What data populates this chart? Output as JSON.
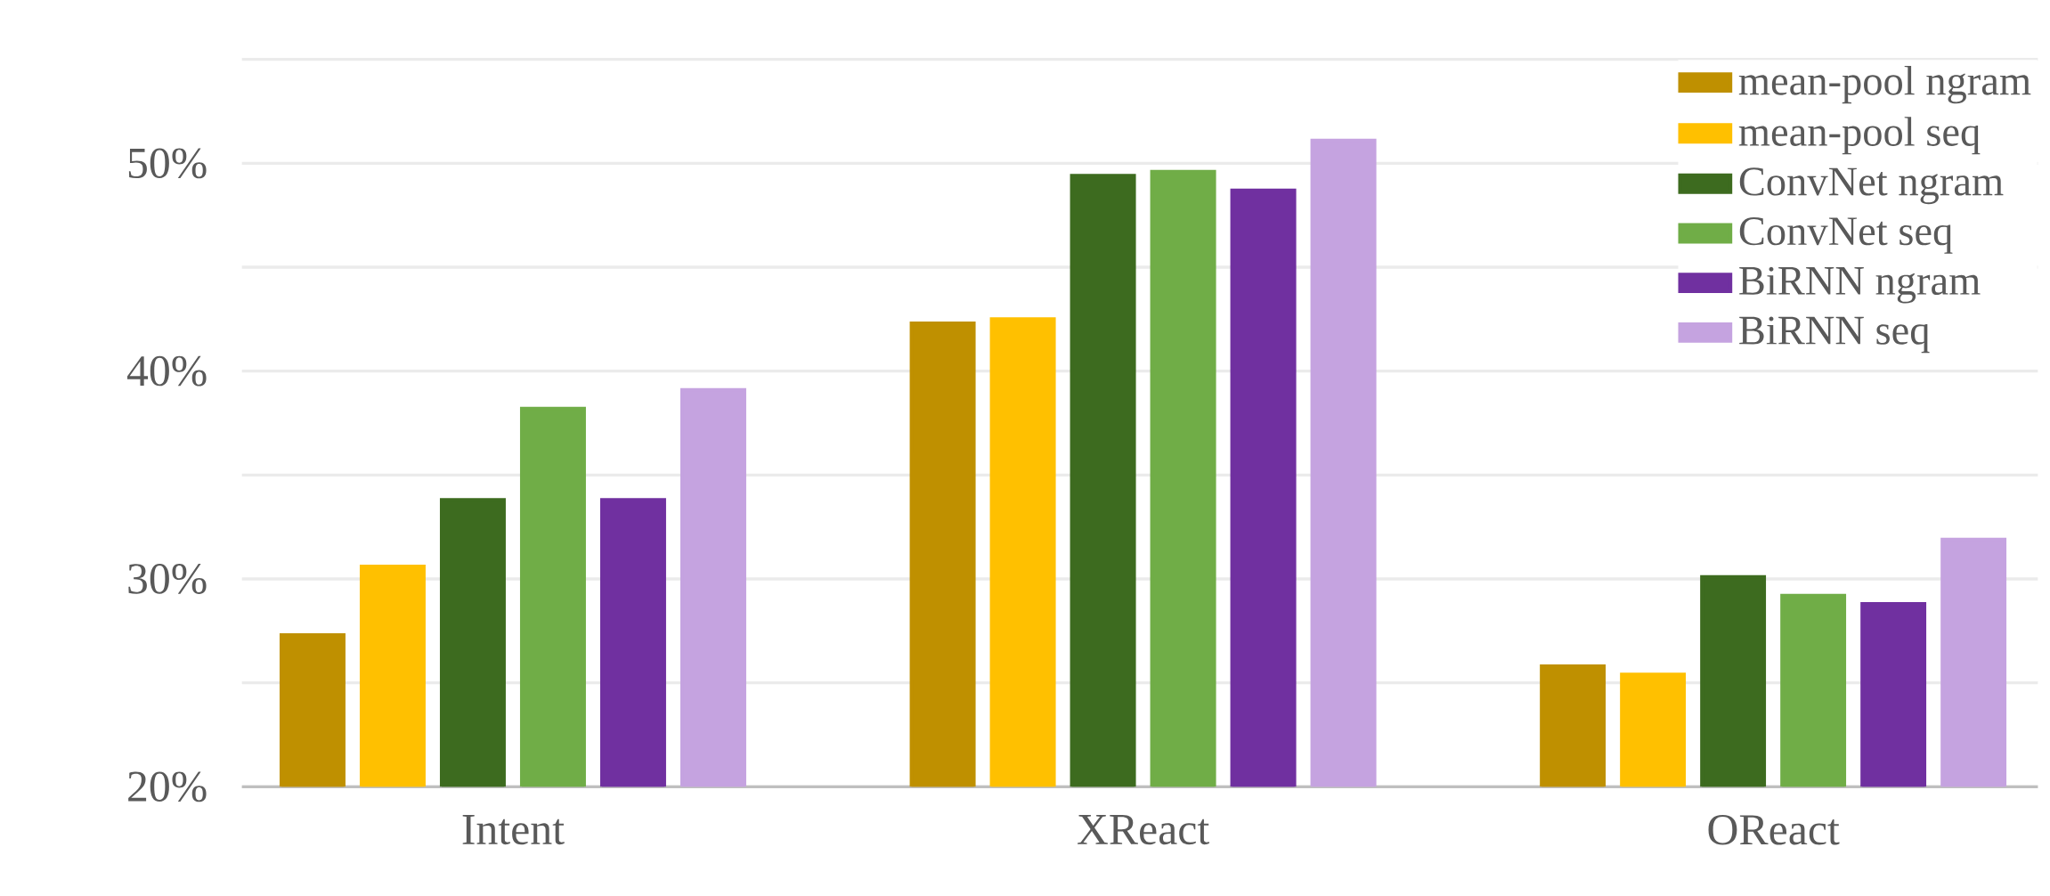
{
  "chart_data": {
    "type": "bar",
    "categories": [
      "Intent",
      "XReact",
      "OReact"
    ],
    "series": [
      {
        "name": "mean-pool ngram",
        "color": "#bf9000",
        "values": [
          27.3,
          42.3,
          25.8
        ]
      },
      {
        "name": "mean-pool seq",
        "color": "#ffc000",
        "values": [
          30.6,
          42.5,
          25.4
        ]
      },
      {
        "name": "ConvNet ngram",
        "color": "#3d6b1f",
        "values": [
          33.8,
          49.4,
          30.1
        ]
      },
      {
        "name": "ConvNet seq",
        "color": "#70ad47",
        "values": [
          38.2,
          49.6,
          29.2
        ]
      },
      {
        "name": "BiRNN ngram",
        "color": "#7030a0",
        "values": [
          33.8,
          48.7,
          28.8
        ]
      },
      {
        "name": "BiRNN seq",
        "color": "#c5a3e0",
        "values": [
          39.1,
          51.1,
          31.9
        ]
      }
    ],
    "ylim": [
      20,
      55
    ],
    "yticks": [
      {
        "value": 20,
        "label": "20%"
      },
      {
        "value": 25,
        "label": null
      },
      {
        "value": 30,
        "label": "30%"
      },
      {
        "value": 35,
        "label": null
      },
      {
        "value": 40,
        "label": "40%"
      },
      {
        "value": 45,
        "label": null
      },
      {
        "value": 50,
        "label": "50%"
      },
      {
        "value": 55,
        "label": null
      }
    ],
    "grid": "y",
    "legend": "top right"
  }
}
